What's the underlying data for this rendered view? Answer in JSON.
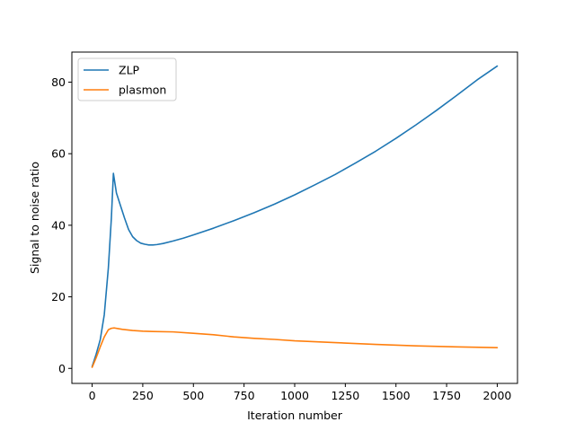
{
  "chart_data": {
    "type": "line",
    "title": "",
    "xlabel": "Iteration number",
    "ylabel": "Signal to noise ratio",
    "xlim": [
      -100,
      2100
    ],
    "ylim": [
      -4.2,
      88.4
    ],
    "xticks": [
      0,
      250,
      500,
      750,
      1000,
      1250,
      1500,
      1750,
      2000
    ],
    "yticks": [
      0,
      20,
      40,
      60,
      80
    ],
    "grid": false,
    "legend_position": "top-left",
    "series": [
      {
        "name": "ZLP",
        "color": "#1f77b4",
        "x": [
          0,
          20,
          40,
          60,
          80,
          95,
          105,
          120,
          140,
          160,
          180,
          200,
          220,
          240,
          260,
          280,
          300,
          320,
          350,
          400,
          450,
          500,
          600,
          700,
          800,
          900,
          1000,
          1100,
          1200,
          1300,
          1400,
          1500,
          1600,
          1700,
          1800,
          1900,
          2000
        ],
        "y": [
          0.5,
          4,
          8,
          15,
          28,
          42,
          54.5,
          49,
          45.5,
          42,
          38.8,
          36.8,
          35.7,
          35,
          34.7,
          34.5,
          34.5,
          34.6,
          34.9,
          35.6,
          36.4,
          37.3,
          39.2,
          41.3,
          43.5,
          45.9,
          48.5,
          51.3,
          54.2,
          57.4,
          60.7,
          64.3,
          68.1,
          72.1,
          76.3,
          80.6,
          84.5
        ]
      },
      {
        "name": "plasmon",
        "color": "#ff7f0e",
        "x": [
          0,
          20,
          40,
          60,
          80,
          95,
          110,
          130,
          150,
          200,
          250,
          300,
          400,
          500,
          600,
          700,
          800,
          900,
          1000,
          1200,
          1400,
          1600,
          1800,
          2000
        ],
        "y": [
          0.3,
          3,
          6,
          8.8,
          10.8,
          11.2,
          11.3,
          11.1,
          10.9,
          10.6,
          10.4,
          10.3,
          10.2,
          9.8,
          9.4,
          8.8,
          8.4,
          8.1,
          7.7,
          7.2,
          6.7,
          6.3,
          6,
          5.8
        ]
      }
    ]
  }
}
